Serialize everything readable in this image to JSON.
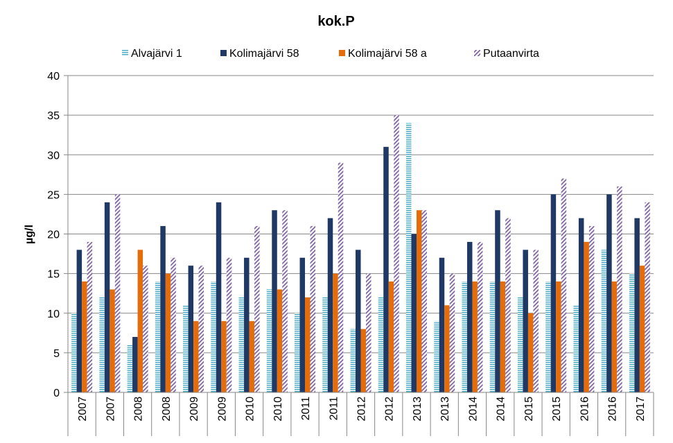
{
  "chart_data": {
    "type": "bar",
    "title": "kok.P",
    "xlabel": "",
    "ylabel": "µg/l",
    "ylim": [
      0,
      40
    ],
    "yticks": [
      "0",
      "5",
      "10",
      "15",
      "20",
      "25",
      "30",
      "35",
      "40"
    ],
    "categories": [
      "2007",
      "2007",
      "2008",
      "2008",
      "2009",
      "2009",
      "2010",
      "2010",
      "2011",
      "2011",
      "2012",
      "2012",
      "2013",
      "2013",
      "2014",
      "2014",
      "2015",
      "2015",
      "2016",
      "2016",
      "2017"
    ],
    "series": [
      {
        "name": "Alvajärvi 1",
        "color": "#4bacc6",
        "pattern": "horizontal-lines",
        "values": [
          10,
          12,
          6,
          14,
          11,
          14,
          12,
          13,
          10,
          12,
          8,
          12,
          34,
          9,
          14,
          14,
          12,
          14,
          11,
          18,
          15
        ]
      },
      {
        "name": "Kolimajärvi 58",
        "color": "#1f3864",
        "pattern": "solid",
        "values": [
          18,
          24,
          7,
          21,
          16,
          24,
          17,
          23,
          17,
          22,
          18,
          31,
          20,
          17,
          19,
          23,
          18,
          25,
          22,
          25,
          22
        ]
      },
      {
        "name": "Kolimajärvi 58 a",
        "color": "#e46c0a",
        "pattern": "solid",
        "values": [
          14,
          13,
          18,
          15,
          9,
          9,
          9,
          13,
          12,
          15,
          8,
          14,
          23,
          11,
          14,
          14,
          10,
          14,
          19,
          14,
          16
        ]
      },
      {
        "name": "Putaanvirta",
        "color": "#8064a2",
        "pattern": "diagonal-lines",
        "values": [
          19,
          25,
          16,
          17,
          16,
          17,
          21,
          23,
          21,
          29,
          15,
          35,
          23,
          15,
          19,
          22,
          18,
          27,
          21,
          26,
          24
        ]
      }
    ],
    "grid": true,
    "legend": "top"
  }
}
